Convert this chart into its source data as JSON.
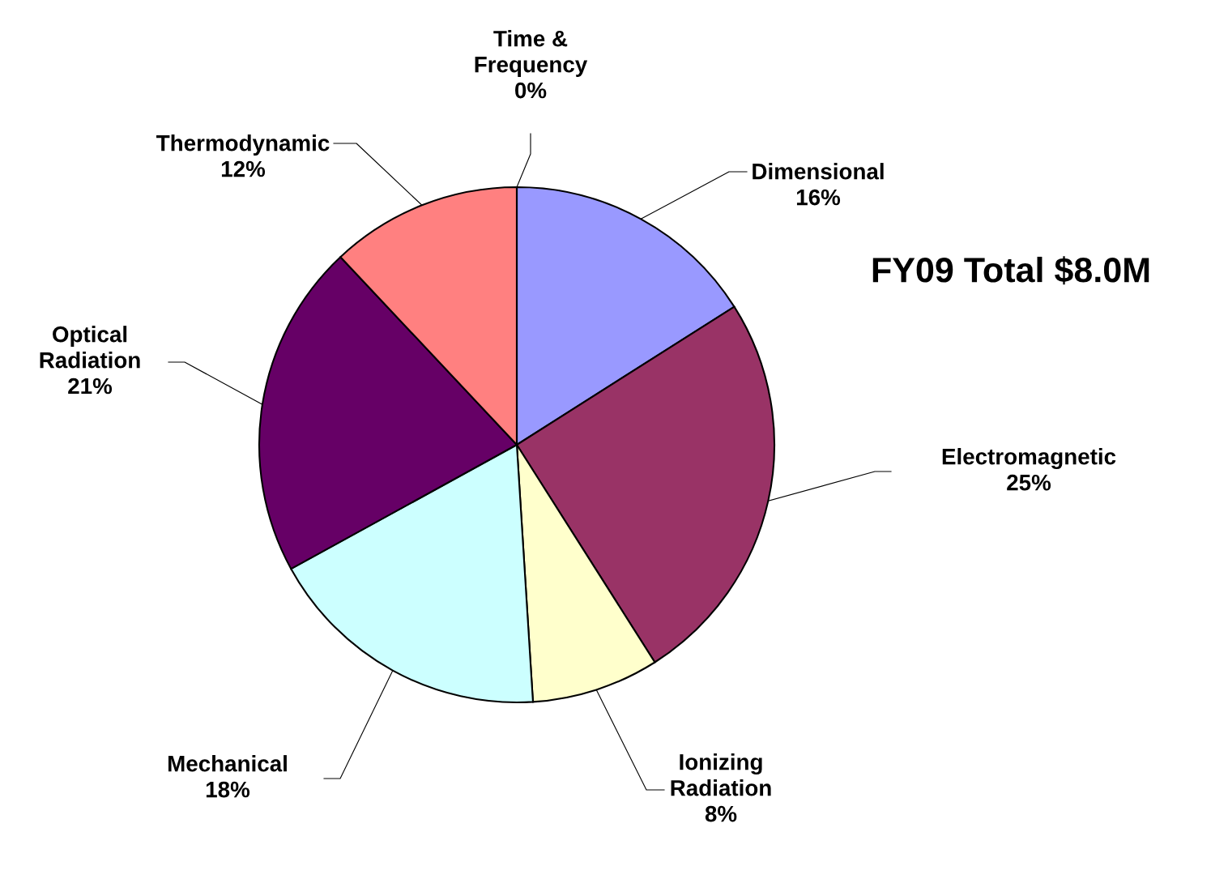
{
  "chart_data": {
    "type": "pie",
    "categories": [
      "Dimensional",
      "Electromagnetic",
      "Ionizing\nRadiation",
      "Mechanical",
      "Optical\nRadiation",
      "Thermodynamic",
      "Time &\nFrequency"
    ],
    "values": [
      16,
      25,
      8,
      18,
      21,
      12,
      0
    ],
    "value_labels": [
      "16%",
      "25%",
      "8%",
      "18%",
      "21%",
      "12%",
      "0%"
    ],
    "colors": [
      "#9999ff",
      "#993366",
      "#ffffcc",
      "#ccffff",
      "#660066",
      "#ff8080",
      "#3366cc"
    ],
    "annotations": [
      "FY09 Total $8.0M"
    ]
  }
}
